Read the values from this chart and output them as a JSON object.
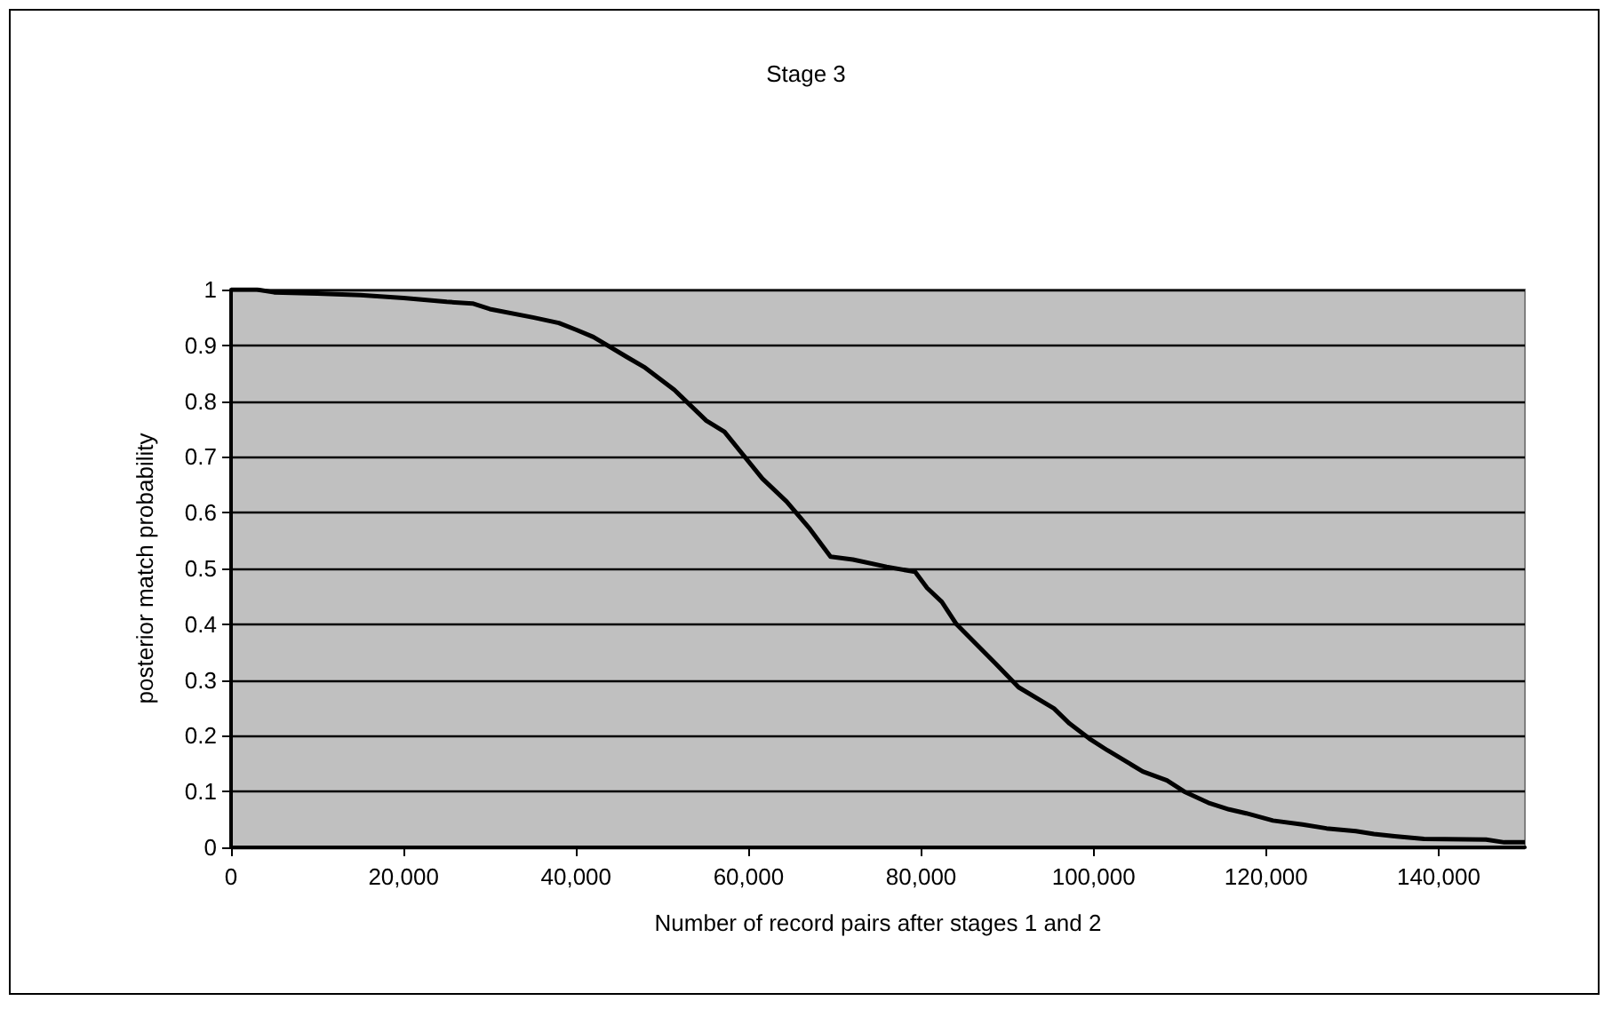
{
  "chart_data": {
    "type": "line",
    "title": "Stage 3",
    "xlabel": "Number of record pairs after stages 1 and 2",
    "ylabel": "posterior match probability",
    "x": [
      0,
      3000,
      5000,
      10000,
      15000,
      20000,
      25000,
      28000,
      30000,
      35000,
      38000,
      40000,
      42000,
      45900,
      48000,
      51400,
      55100,
      57200,
      61600,
      64400,
      67100,
      69500,
      72100,
      76000,
      79300,
      80700,
      82400,
      84100,
      88600,
      91300,
      95400,
      97200,
      99500,
      101600,
      105700,
      108500,
      110500,
      113300,
      115700,
      117700,
      120800,
      124200,
      127000,
      130400,
      132500,
      134900,
      138300,
      145500,
      147600,
      150000
    ],
    "series": [
      {
        "color": "#000000",
        "values": [
          1,
          1,
          0.995,
          0.993,
          0.99,
          0.985,
          0.978,
          0.975,
          0.965,
          0.95,
          0.94,
          0.928,
          0.915,
          0.879,
          0.86,
          0.82,
          0.765,
          0.745,
          0.661,
          0.62,
          0.571,
          0.521,
          0.516,
          0.503,
          0.494,
          0.465,
          0.44,
          0.4,
          0.33,
          0.287,
          0.249,
          0.222,
          0.195,
          0.174,
          0.136,
          0.12,
          0.1,
          0.08,
          0.068,
          0.061,
          0.048,
          0.041,
          0.034,
          0.029,
          0.024,
          0.02,
          0.015,
          0.014,
          0.009,
          0.009
        ]
      }
    ],
    "xlim": [
      0,
      150000
    ],
    "xticks": [
      {
        "value": 0,
        "label": "0"
      },
      {
        "value": 20000,
        "label": "20,000"
      },
      {
        "value": 40000,
        "label": "40,000"
      },
      {
        "value": 60000,
        "label": "60,000"
      },
      {
        "value": 80000,
        "label": "80,000"
      },
      {
        "value": 100000,
        "label": "100,000"
      },
      {
        "value": 120000,
        "label": "120,000"
      },
      {
        "value": 140000,
        "label": "140,000"
      }
    ],
    "ylim": [
      0,
      1
    ],
    "yticks": [
      0,
      0.1,
      0.2,
      0.3,
      0.4,
      0.5,
      0.6,
      0.7,
      0.8,
      0.9,
      1
    ],
    "grid": "y",
    "marker": "none",
    "line_style": "solid"
  }
}
